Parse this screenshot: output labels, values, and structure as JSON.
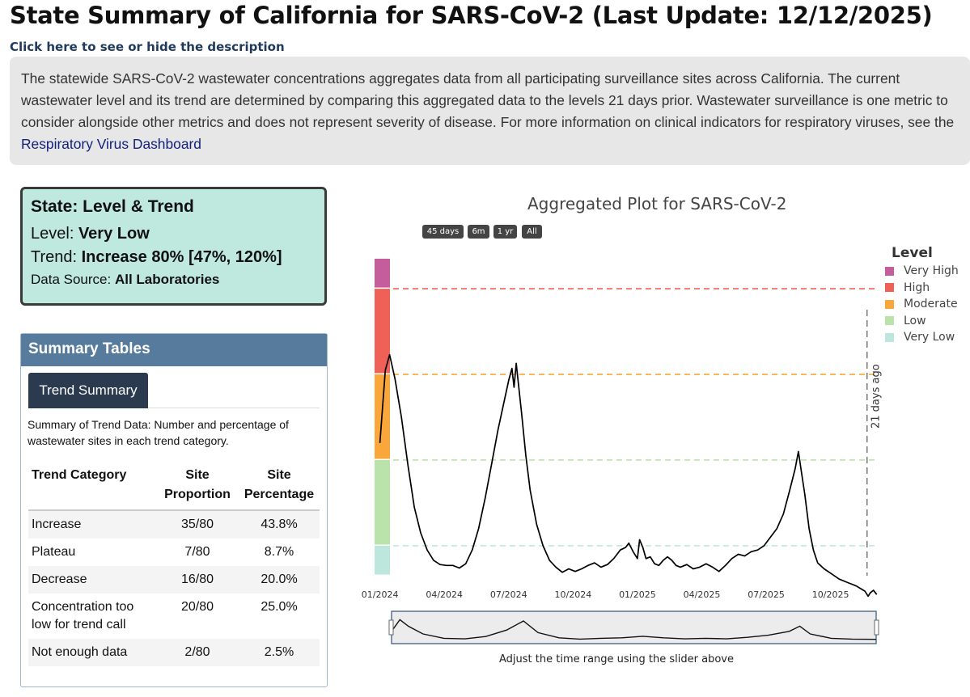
{
  "page": {
    "title": "State Summary of California for SARS-CoV-2 (Last Update: 12/12/2025)",
    "description_toggle": "Click here to see or hide the description",
    "description_text": "The statewide SARS-CoV-2 wastewater concentrations aggregates data from all participating surveillance sites across California. The current wastewater level and its trend are determined by comparing this aggregated data to the levels 21 days prior. Wastewater surveillance is one metric to consider alongside other metrics and does not represent severity of disease. For more information on clinical indicators for respiratory viruses, see the ",
    "description_link": "Respiratory Virus Dashboard"
  },
  "level_card": {
    "title": "State: Level & Trend",
    "level_label": "Level: ",
    "level_value": "Very Low",
    "trend_label": "Trend: ",
    "trend_value": "Increase 80% [47%, 120%]",
    "source_label": "Data Source: ",
    "source_value": "All Laboratories",
    "background": "#bfe8df"
  },
  "summary": {
    "header": "Summary Tables",
    "tab_label": "Trend Summary",
    "note": "Summary of Trend Data: Number and percentage of wastewater sites in each trend category.",
    "columns": [
      "Trend Category",
      "Site Proportion",
      "Site Percentage"
    ],
    "rows": [
      {
        "category": "Increase",
        "proportion": "35/80",
        "percentage": "43.8%"
      },
      {
        "category": "Plateau",
        "proportion": "7/80",
        "percentage": "8.7%"
      },
      {
        "category": "Decrease",
        "proportion": "16/80",
        "percentage": "20.0%"
      },
      {
        "category": "Concentration too low for trend call",
        "proportion": "20/80",
        "percentage": "25.0%"
      },
      {
        "category": "Not enough data",
        "proportion": "2/80",
        "percentage": "2.5%"
      }
    ]
  },
  "chart": {
    "range_buttons": [
      "45 days",
      "6m",
      "1 yr",
      "All"
    ],
    "slider_caption": "Adjust the time range using the slider above"
  },
  "chart_data": {
    "type": "line",
    "title": "Aggregated Plot for SARS-CoV-2",
    "x_tick_labels": [
      "01/2024",
      "04/2024",
      "07/2024",
      "10/2024",
      "01/2025",
      "04/2025",
      "07/2025",
      "10/2025"
    ],
    "x_tick_months": [
      0,
      3,
      6,
      9,
      12,
      15,
      18,
      21
    ],
    "x_range_months": [
      -0.25,
      23.2
    ],
    "y_range_level": [
      0,
      3.7
    ],
    "level_thresholds": [
      1,
      2,
      3,
      4
    ],
    "level_bands": [
      {
        "name": "Very Low",
        "from": 0,
        "to": 0.35,
        "color": "#bde7dd"
      },
      {
        "name": "Low",
        "from": 0.35,
        "to": 1.35,
        "color": "#b9e3ab"
      },
      {
        "name": "Moderate",
        "from": 1.35,
        "to": 2.35,
        "color": "#f9a73b"
      },
      {
        "name": "High",
        "from": 2.35,
        "to": 3.35,
        "color": "#ef6156"
      },
      {
        "name": "Very High",
        "from": 3.35,
        "to": 3.7,
        "color": "#c55d9d"
      }
    ],
    "threshold_lines": [
      {
        "level": 0.35,
        "color": "#bde7dd"
      },
      {
        "level": 1.35,
        "color": "#b9e3ab"
      },
      {
        "level": 2.35,
        "color": "#f9a73b"
      },
      {
        "level": 3.35,
        "color": "#ef6156"
      }
    ],
    "legend_title": "Level",
    "legend": [
      {
        "name": "Very High",
        "color": "#c55d9d"
      },
      {
        "name": "High",
        "color": "#ef6156"
      },
      {
        "name": "Moderate",
        "color": "#f9a73b"
      },
      {
        "name": "Low",
        "color": "#b9e3ab"
      },
      {
        "name": "Very Low",
        "color": "#bde7dd"
      }
    ],
    "annotation": {
      "text": "21 days ago",
      "x_month": 22.7
    },
    "series": [
      {
        "name": "Aggregated SARS-CoV-2",
        "color": "#000000",
        "points": [
          [
            0.0,
            1.55
          ],
          [
            0.25,
            2.4
          ],
          [
            0.45,
            2.58
          ],
          [
            0.7,
            2.3
          ],
          [
            1.0,
            1.85
          ],
          [
            1.3,
            1.3
          ],
          [
            1.6,
            0.8
          ],
          [
            1.9,
            0.5
          ],
          [
            2.2,
            0.3
          ],
          [
            2.5,
            0.18
          ],
          [
            2.8,
            0.13
          ],
          [
            3.1,
            0.12
          ],
          [
            3.4,
            0.12
          ],
          [
            3.7,
            0.09
          ],
          [
            4.0,
            0.14
          ],
          [
            4.3,
            0.3
          ],
          [
            4.6,
            0.55
          ],
          [
            4.9,
            0.9
          ],
          [
            5.2,
            1.3
          ],
          [
            5.5,
            1.7
          ],
          [
            5.8,
            2.05
          ],
          [
            6.0,
            2.28
          ],
          [
            6.15,
            2.42
          ],
          [
            6.25,
            2.2
          ],
          [
            6.35,
            2.48
          ],
          [
            6.45,
            2.25
          ],
          [
            6.6,
            1.9
          ],
          [
            6.8,
            1.4
          ],
          [
            7.0,
            1.0
          ],
          [
            7.3,
            0.6
          ],
          [
            7.6,
            0.35
          ],
          [
            7.9,
            0.18
          ],
          [
            8.2,
            0.1
          ],
          [
            8.5,
            0.04
          ],
          [
            8.8,
            0.08
          ],
          [
            9.1,
            0.05
          ],
          [
            9.4,
            0.08
          ],
          [
            9.7,
            0.12
          ],
          [
            10.0,
            0.15
          ],
          [
            10.3,
            0.1
          ],
          [
            10.6,
            0.13
          ],
          [
            10.9,
            0.2
          ],
          [
            11.2,
            0.3
          ],
          [
            11.45,
            0.33
          ],
          [
            11.6,
            0.38
          ],
          [
            11.8,
            0.28
          ],
          [
            12.0,
            0.2
          ],
          [
            12.1,
            0.42
          ],
          [
            12.25,
            0.33
          ],
          [
            12.4,
            0.2
          ],
          [
            12.6,
            0.22
          ],
          [
            12.8,
            0.14
          ],
          [
            13.0,
            0.12
          ],
          [
            13.2,
            0.18
          ],
          [
            13.4,
            0.22
          ],
          [
            13.6,
            0.18
          ],
          [
            13.8,
            0.12
          ],
          [
            14.0,
            0.1
          ],
          [
            14.3,
            0.13
          ],
          [
            14.6,
            0.08
          ],
          [
            14.9,
            0.1
          ],
          [
            15.2,
            0.14
          ],
          [
            15.5,
            0.1
          ],
          [
            15.8,
            0.05
          ],
          [
            16.1,
            0.12
          ],
          [
            16.4,
            0.2
          ],
          [
            16.7,
            0.25
          ],
          [
            17.0,
            0.23
          ],
          [
            17.3,
            0.28
          ],
          [
            17.6,
            0.3
          ],
          [
            17.9,
            0.35
          ],
          [
            18.2,
            0.45
          ],
          [
            18.5,
            0.55
          ],
          [
            18.8,
            0.72
          ],
          [
            19.1,
            1.0
          ],
          [
            19.35,
            1.25
          ],
          [
            19.5,
            1.45
          ],
          [
            19.65,
            1.2
          ],
          [
            19.8,
            0.95
          ],
          [
            20.0,
            0.55
          ],
          [
            20.2,
            0.3
          ],
          [
            20.4,
            0.15
          ],
          [
            20.7,
            0.08
          ],
          [
            21.0,
            0.03
          ],
          [
            21.4,
            -0.04
          ],
          [
            21.8,
            -0.08
          ],
          [
            22.2,
            -0.12
          ],
          [
            22.6,
            -0.18
          ],
          [
            22.75,
            -0.24
          ],
          [
            22.85,
            -0.2
          ],
          [
            23.0,
            -0.17
          ],
          [
            23.15,
            -0.22
          ]
        ]
      }
    ],
    "navigator_series": [
      [
        0.0,
        0.35
      ],
      [
        0.4,
        0.8
      ],
      [
        0.8,
        0.55
      ],
      [
        1.5,
        0.25
      ],
      [
        2.5,
        0.08
      ],
      [
        3.5,
        0.06
      ],
      [
        4.5,
        0.15
      ],
      [
        5.5,
        0.4
      ],
      [
        6.3,
        0.75
      ],
      [
        7.0,
        0.3
      ],
      [
        8.0,
        0.1
      ],
      [
        9.0,
        0.05
      ],
      [
        10.0,
        0.08
      ],
      [
        11.0,
        0.1
      ],
      [
        12.0,
        0.16
      ],
      [
        13.0,
        0.1
      ],
      [
        14.0,
        0.06
      ],
      [
        15.0,
        0.08
      ],
      [
        16.0,
        0.06
      ],
      [
        17.0,
        0.12
      ],
      [
        18.0,
        0.2
      ],
      [
        19.0,
        0.35
      ],
      [
        19.5,
        0.55
      ],
      [
        20.0,
        0.25
      ],
      [
        21.0,
        0.08
      ],
      [
        22.0,
        0.05
      ],
      [
        23.15,
        0.04
      ]
    ]
  }
}
